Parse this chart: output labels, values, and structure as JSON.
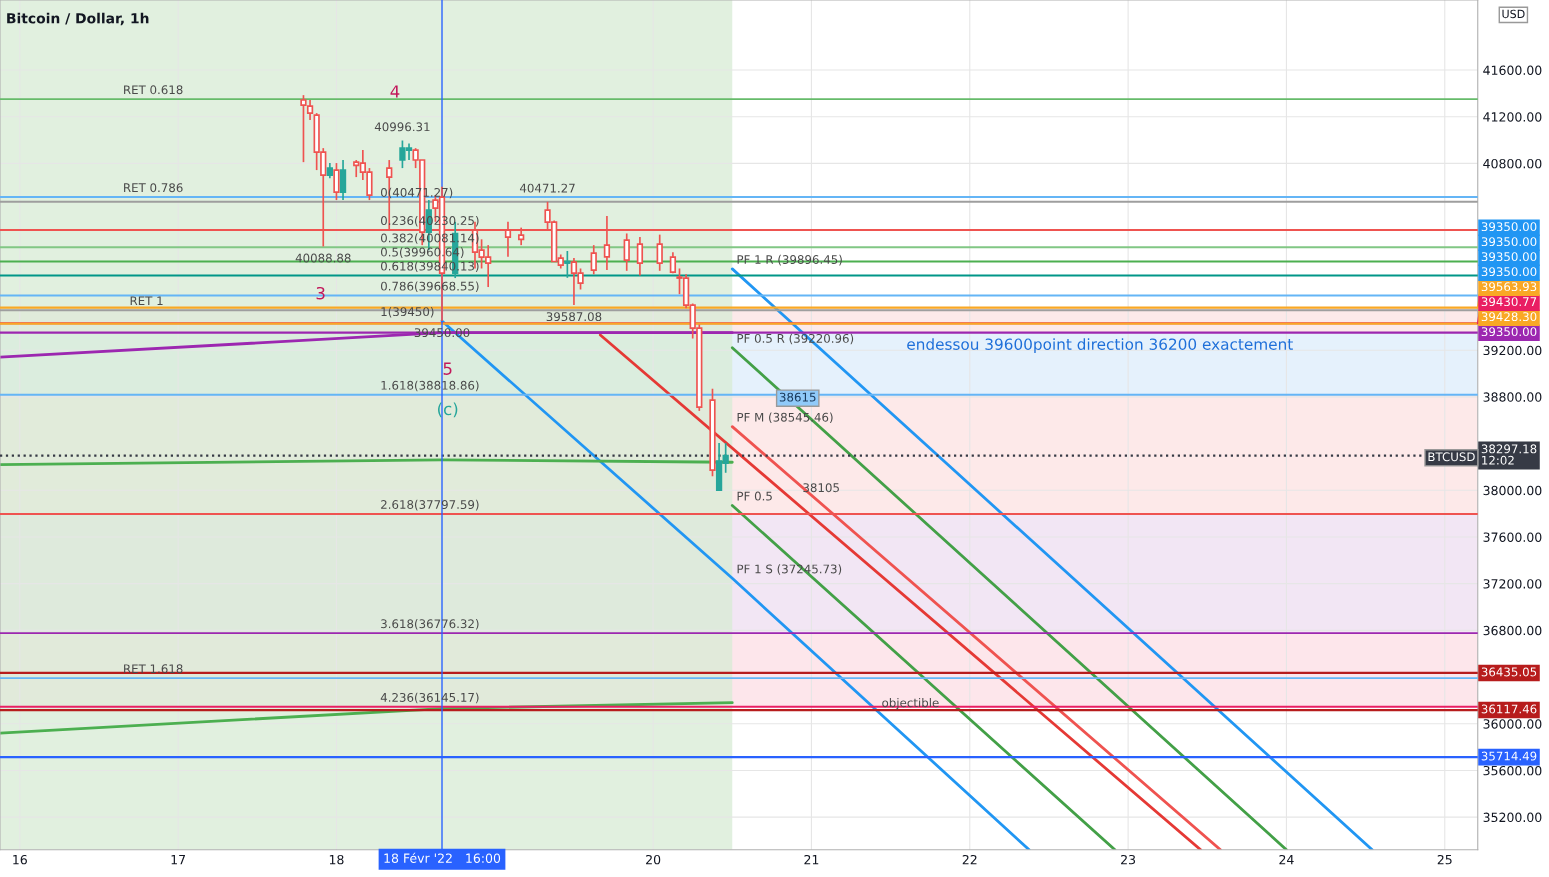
{
  "chart_data": {
    "type": "candlestick",
    "title": "Bitcoin / Dollar, 1h",
    "x": [
      "2022-02-17T19:00",
      "2022-02-17T20:00",
      "2022-02-17T21:00",
      "2022-02-17T22:00",
      "2022-02-17T23:00",
      "2022-02-18T00:00",
      "2022-02-18T01:00",
      "2022-02-18T03:00",
      "2022-02-18T04:00",
      "2022-02-18T05:00",
      "2022-02-18T08:00",
      "2022-02-18T10:00",
      "2022-02-18T11:00",
      "2022-02-18T12:00",
      "2022-02-18T13:00",
      "2022-02-18T14:00",
      "2022-02-18T15:00",
      "2022-02-18T16:00",
      "2022-02-18T18:00",
      "2022-02-18T21:00",
      "2022-02-18T22:00",
      "2022-02-18T23:00",
      "2022-02-19T02:00",
      "2022-02-19T04:00",
      "2022-02-19T08:00",
      "2022-02-19T09:00",
      "2022-02-19T10:00",
      "2022-02-19T11:00",
      "2022-02-19T12:00",
      "2022-02-19T13:00",
      "2022-02-19T15:00",
      "2022-02-19T17:00",
      "2022-02-19T20:00",
      "2022-02-19T22:00",
      "2022-02-20T01:00",
      "2022-02-20T03:00",
      "2022-02-20T04:00",
      "2022-02-20T05:00",
      "2022-02-20T06:00",
      "2022-02-20T07:00",
      "2022-02-20T09:00",
      "2022-02-20T10:00",
      "2022-02-20T11:00"
    ],
    "ohlc": [
      [
        41343,
        41385,
        40811,
        41300
      ],
      [
        41291,
        41343,
        41171,
        41231
      ],
      [
        41214,
        41231,
        40743,
        40897
      ],
      [
        40897,
        40931,
        40088.88,
        40700
      ],
      [
        40700,
        40803,
        40674,
        40760
      ],
      [
        40743,
        40803,
        40486,
        40554
      ],
      [
        40554,
        40829,
        40486,
        40743
      ],
      [
        40811,
        40829,
        40683,
        40783
      ],
      [
        40803,
        40914,
        40657,
        40726
      ],
      [
        40726,
        40760,
        40486,
        40529
      ],
      [
        40760,
        40829,
        40229,
        40683
      ],
      [
        40829,
        40996.31,
        40760,
        40931
      ],
      [
        40914,
        40970,
        40829,
        40931
      ],
      [
        40914,
        40931,
        40760,
        40829
      ],
      [
        40829,
        40829,
        40100,
        40212
      ],
      [
        40212,
        40486,
        40057,
        40400
      ],
      [
        40486,
        40529,
        40300,
        40417
      ],
      [
        40512,
        40600,
        39450,
        39860
      ],
      [
        39860,
        40300,
        39818,
        40200
      ],
      [
        40229,
        40300,
        39900,
        40040
      ],
      [
        40057,
        40150,
        39900,
        39998
      ],
      [
        39998,
        40100,
        39741,
        39946
      ],
      [
        40229,
        40300,
        40000,
        40169
      ],
      [
        40186,
        40250,
        40100,
        40150
      ],
      [
        40400,
        40471.27,
        40229,
        40297
      ],
      [
        40297,
        40310,
        39960,
        39960
      ],
      [
        39989,
        40020,
        39900,
        39929
      ],
      [
        39946,
        40050,
        39820,
        39960
      ],
      [
        39955,
        39990,
        39587.08,
        39860
      ],
      [
        39860,
        39900,
        39720,
        39775
      ],
      [
        40032,
        40100,
        39850,
        39886
      ],
      [
        40100,
        40350,
        39886,
        40000
      ],
      [
        40143,
        40200,
        39880,
        39972
      ],
      [
        40109,
        40170,
        39840,
        39946
      ],
      [
        40109,
        40190,
        39880,
        39946
      ],
      [
        39998,
        40040,
        39860,
        39869
      ],
      [
        39826,
        39900,
        39680,
        39818
      ],
      [
        39818,
        39850,
        39560,
        39586
      ],
      [
        39586,
        39600,
        39300,
        39389
      ],
      [
        39389,
        39420,
        38680,
        38712
      ],
      [
        38772,
        38870,
        38120,
        38173
      ],
      [
        38001,
        38404,
        38001,
        38250
      ],
      [
        38233,
        38404,
        38150,
        38297
      ]
    ],
    "series": [
      {
        "type": "line",
        "color": "#e53935",
        "x": [
          "2022-02-19T16:00",
          "2022-02-23T11:00"
        ],
        "values": [
          39330,
          34920
        ]
      },
      {
        "type": "line",
        "color": "#2196f3",
        "x": [
          "2022-02-20T12:00",
          "2022-02-24T13:00"
        ],
        "values": [
          39896.45,
          34920
        ]
      },
      {
        "type": "line",
        "color": "#2196f3",
        "x": [
          "2022-02-18T16:00",
          "2022-02-20T12:00",
          "2022-02-22T09:00"
        ],
        "values": [
          39450,
          37245.73,
          34920
        ]
      },
      {
        "type": "line",
        "color": "#43a047",
        "x": [
          "2022-02-20T12:00",
          "2022-02-24T00:00"
        ],
        "values": [
          39220.96,
          34920
        ]
      },
      {
        "type": "line",
        "color": "#ef5350",
        "x": [
          "2022-02-20T12:00",
          "2022-02-23T14:00"
        ],
        "values": [
          38545.46,
          34920
        ]
      },
      {
        "type": "line",
        "color": "#43a047",
        "x": [
          "2022-02-20T12:00",
          "2022-02-22T22:00"
        ],
        "values": [
          37870,
          34920
        ]
      },
      {
        "type": "line",
        "color": "#9c27b0",
        "x": [
          "2022-02-15T21:00",
          "2022-02-18T16:00",
          "2022-02-20T12:00"
        ],
        "values": [
          39140,
          39350,
          39350
        ]
      },
      {
        "type": "line",
        "color": "#4caf50",
        "x": [
          "2022-02-15T21:00",
          "2022-02-18T16:00",
          "2022-02-20T12:00"
        ],
        "values": [
          38220,
          38260,
          38240
        ]
      },
      {
        "type": "line",
        "color": "#4caf50",
        "x": [
          "2022-02-15T21:00",
          "2022-02-18T16:00",
          "2022-02-20T12:00"
        ],
        "values": [
          35920,
          36130,
          36180
        ]
      }
    ],
    "bands": [
      {
        "axis": "x",
        "from": "2022-02-15T21:00",
        "to": "2022-02-20T12:00",
        "color": "#d7ebd4"
      },
      {
        "axis": "y",
        "from": 39350,
        "to": 39563.93,
        "color": "#fbe4e4"
      },
      {
        "axis": "y",
        "from": 38818.86,
        "to": 39350,
        "color": "#dfeefb"
      },
      {
        "axis": "y",
        "from": 37797.59,
        "to": 38818.86,
        "color": "#fde3e3"
      },
      {
        "axis": "y",
        "from": 36776.32,
        "to": 37797.59,
        "color": "#efe0f1"
      },
      {
        "axis": "y",
        "from": 36145.17,
        "to": 36776.32,
        "color": "#fce0e6"
      }
    ],
    "ref_lines": [
      {
        "axis": "y",
        "value": 39563.93,
        "label": "39563.93",
        "color": "#f9a825"
      },
      {
        "axis": "y",
        "value": 39430.77,
        "label": "39430.77",
        "color": "#e91e63"
      },
      {
        "axis": "y",
        "value": 39428.3,
        "label": "39428.30",
        "color": "#f9a825"
      },
      {
        "axis": "y",
        "value": 39350,
        "label": "39350.00",
        "color": "#9c27b0"
      },
      {
        "axis": "y",
        "value": 38297.18,
        "label": "38297.18\n12:02",
        "color": "#363a45",
        "line_style": "dotted"
      },
      {
        "axis": "y",
        "value": 36435.05,
        "label": "36435.05",
        "color": "#b71c1c"
      },
      {
        "axis": "y",
        "value": 36117.46,
        "label": "36117.46",
        "color": "#b71c1c"
      },
      {
        "axis": "y",
        "value": 35714.49,
        "label": "35714.49",
        "color": "#2962ff"
      },
      {
        "axis": "y",
        "value": 41351,
        "color": "#66bb6a"
      },
      {
        "axis": "y",
        "value": 40512,
        "color": "#64b5f6"
      },
      {
        "axis": "y",
        "value": 39543,
        "color": "#9e9e9e"
      },
      {
        "axis": "y",
        "value": 36391,
        "color": "#64b5f6"
      },
      {
        "axis": "y",
        "value": 40471.27,
        "color": "#9e9e9e"
      },
      {
        "axis": "y",
        "value": 40230.25,
        "color": "#ef5350"
      },
      {
        "axis": "y",
        "value": 40081.14,
        "color": "#81c784"
      },
      {
        "axis": "y",
        "value": 39960.64,
        "color": "#4caf50"
      },
      {
        "axis": "y",
        "value": 39840.13,
        "color": "#009688"
      },
      {
        "axis": "y",
        "value": 39668.55,
        "color": "#64b5f6"
      },
      {
        "axis": "y",
        "value": 38818.86,
        "color": "#64b5f6"
      },
      {
        "axis": "y",
        "value": 37797.59,
        "color": "#ef5350"
      },
      {
        "axis": "y",
        "value": 36776.32,
        "color": "#9c27b0"
      },
      {
        "axis": "y",
        "value": 36145.17,
        "color": "#e91e63"
      },
      {
        "axis": "x",
        "value": "2022-02-18T16:00",
        "label": "18 Févr '22   16:00",
        "color": "#2962ff"
      }
    ],
    "annotations": [
      {
        "text": "RET 0.618",
        "x": "2022-02-16T15:00",
        "y": 41351
      },
      {
        "text": "RET 0.786",
        "x": "2022-02-16T15:00",
        "y": 40512
      },
      {
        "text": "RET 1",
        "x": "2022-02-16T16:00",
        "y": 39543
      },
      {
        "text": "RET 1.618",
        "x": "2022-02-16T15:00",
        "y": 36391
      },
      {
        "text": "0(40471.27)",
        "x": "2022-02-18T06:00",
        "y": 40471.27
      },
      {
        "text": "0.236(40230.25)",
        "x": "2022-02-18T06:00",
        "y": 40230.25
      },
      {
        "text": "0.382(40081.14)",
        "x": "2022-02-18T06:00",
        "y": 40081.14
      },
      {
        "text": "0.5(39960.64)",
        "x": "2022-02-18T06:00",
        "y": 39960.64
      },
      {
        "text": "0.618(39840.13)",
        "x": "2022-02-18T06:00",
        "y": 39840.13
      },
      {
        "text": "0.786(39668.55)",
        "x": "2022-02-18T06:00",
        "y": 39668.55
      },
      {
        "text": "1(39450)",
        "x": "2022-02-18T06:00",
        "y": 39450
      },
      {
        "text": "1.618(38818.86)",
        "x": "2022-02-18T06:00",
        "y": 38818.86
      },
      {
        "text": "2.618(37797.59)",
        "x": "2022-02-18T06:00",
        "y": 37797.59
      },
      {
        "text": "3.618(36776.32)",
        "x": "2022-02-18T06:00",
        "y": 36776.32
      },
      {
        "text": "4.236(36145.17)",
        "x": "2022-02-18T06:00",
        "y": 36145.17
      },
      {
        "text": "PF 1 R (39896.45)",
        "x": "2022-02-20T12:00",
        "y": 39896.45
      },
      {
        "text": "PF 0.5 R (39220.96)",
        "x": "2022-02-20T12:00",
        "y": 39220.96
      },
      {
        "text": "PF M (38545.46)",
        "x": "2022-02-20T12:00",
        "y": 38545.46
      },
      {
        "text": "PF 0.5",
        "x": "2022-02-20T12:00",
        "y": 37870
      },
      {
        "text": "PF 1 S (37245.73)",
        "x": "2022-02-20T12:00",
        "y": 37245.73
      },
      {
        "text": "40996.31",
        "x": "2022-02-18T10:00",
        "y": 40996.31
      },
      {
        "text": "40088.88",
        "x": "2022-02-17T22:00",
        "y": 40088.88
      },
      {
        "text": "39450.00",
        "x": "2022-02-18T16:00",
        "y": 39450
      },
      {
        "text": "40471.27",
        "x": "2022-02-19T08:00",
        "y": 40471.27
      },
      {
        "text": "39587.08",
        "x": "2022-02-19T12:00",
        "y": 39587.08
      },
      {
        "text": "38105",
        "x": "2022-02-20T22:00",
        "y": 37942
      },
      {
        "text": "objectible",
        "x": "2022-02-21T10:00",
        "y": 36100
      },
      "endessou 39600point direction 36200 exactement",
      "3",
      "4",
      "5",
      "(c)",
      "38615",
      "BTCUSD",
      "USD",
      "39350.00",
      "39350.00",
      "39350.00",
      "39350.00"
    ],
    "xlim": [
      "2022-02-15T21:00",
      "2022-02-25T05:00"
    ],
    "xticks": [
      {
        "value": "2022-02-16",
        "label": "16"
      },
      {
        "value": "2022-02-17",
        "label": "17"
      },
      {
        "value": "2022-02-18",
        "label": "18"
      },
      {
        "value": "2022-02-20",
        "label": "20"
      },
      {
        "value": "2022-02-21",
        "label": "21"
      },
      {
        "value": "2022-02-22",
        "label": "22"
      },
      {
        "value": "2022-02-23",
        "label": "23"
      },
      {
        "value": "2022-02-24",
        "label": "24"
      },
      {
        "value": "2022-02-25",
        "label": "25"
      }
    ],
    "ylim": [
      34920,
      42200
    ],
    "yticks": [
      {
        "value": 35200,
        "label": "35200.00"
      },
      {
        "value": 35600,
        "label": "35600.00"
      },
      {
        "value": 36000,
        "label": "36000.00"
      },
      {
        "value": 36800,
        "label": "36800.00"
      },
      {
        "value": 37200,
        "label": "37200.00"
      },
      {
        "value": 37600,
        "label": "37600.00"
      },
      {
        "value": 38000,
        "label": "38000.00"
      },
      {
        "value": 38800,
        "label": "38800.00"
      },
      {
        "value": 39200,
        "label": "39200.00"
      },
      {
        "value": 40800,
        "label": "40800.00"
      },
      {
        "value": 41200,
        "label": "41200.00"
      },
      {
        "value": 41600,
        "label": "41600.00"
      }
    ],
    "grid": true,
    "legend": false
  }
}
